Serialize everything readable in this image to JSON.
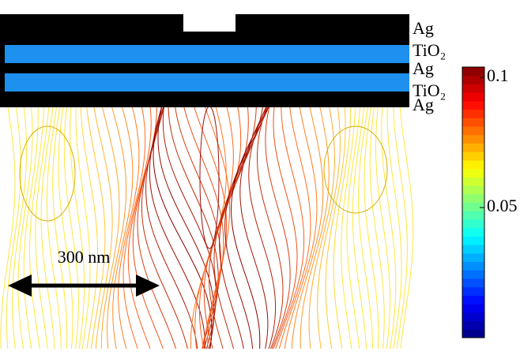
{
  "layers": [
    "Ag",
    "TiO₂",
    "Ag",
    "TiO₂",
    "Ag"
  ],
  "scale_bar": {
    "label": "300 nm"
  },
  "colorbar": {
    "lim": [
      0,
      0.104
    ],
    "ticks": [
      0.05,
      0.1
    ]
  }
}
